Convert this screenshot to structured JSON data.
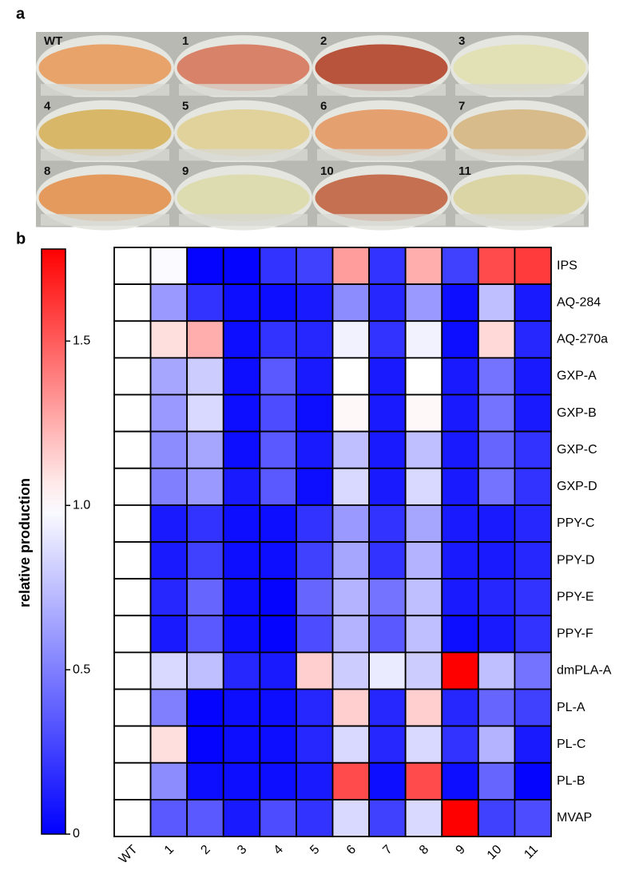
{
  "panel_a": {
    "label": "a",
    "flask_labels": [
      "WT",
      "1",
      "2",
      "3",
      "4",
      "5",
      "6",
      "7",
      "8",
      "9",
      "10",
      "11"
    ]
  },
  "chart_data": {
    "type": "heatmap",
    "panel_label": "b",
    "x": [
      "WT",
      "1",
      "2",
      "3",
      "4",
      "5",
      "6",
      "7",
      "8",
      "9",
      "10",
      "11"
    ],
    "y": [
      "IPS",
      "AQ-284",
      "AQ-270a",
      "GXP-A",
      "GXP-B",
      "GXP-C",
      "GXP-D",
      "PPY-C",
      "PPY-D",
      "PPY-E",
      "PPY-F",
      "dmPLA-A",
      "PL-A",
      "PL-C",
      "PL-B",
      "MVAP"
    ],
    "z": [
      [
        1,
        0.98,
        0.02,
        0.02,
        0.2,
        0.25,
        1.3,
        0.2,
        1.25,
        0.25,
        1.55,
        1.6
      ],
      [
        1,
        0.6,
        0.2,
        0.05,
        0.05,
        0.1,
        0.55,
        0.15,
        0.6,
        0.05,
        0.75,
        0.1
      ],
      [
        1,
        1.1,
        1.25,
        0.05,
        0.2,
        0.15,
        0.95,
        0.2,
        0.95,
        0.05,
        1.12,
        0.15
      ],
      [
        1,
        0.65,
        0.8,
        0.05,
        0.35,
        0.1,
        1.0,
        0.1,
        1.0,
        0.1,
        0.45,
        0.1
      ],
      [
        1,
        0.6,
        0.85,
        0.05,
        0.3,
        0.05,
        1.02,
        0.1,
        1.02,
        0.1,
        0.45,
        0.1
      ],
      [
        1,
        0.55,
        0.65,
        0.05,
        0.35,
        0.1,
        0.75,
        0.1,
        0.75,
        0.1,
        0.4,
        0.2
      ],
      [
        1,
        0.5,
        0.6,
        0.1,
        0.35,
        0.05,
        0.85,
        0.1,
        0.85,
        0.1,
        0.45,
        0.2
      ],
      [
        1,
        0.1,
        0.2,
        0.05,
        0.05,
        0.2,
        0.6,
        0.2,
        0.65,
        0.1,
        0.1,
        0.15
      ],
      [
        1,
        0.1,
        0.25,
        0.05,
        0.05,
        0.25,
        0.65,
        0.2,
        0.7,
        0.1,
        0.1,
        0.15
      ],
      [
        1,
        0.15,
        0.4,
        0.05,
        0.02,
        0.4,
        0.7,
        0.45,
        0.75,
        0.1,
        0.15,
        0.2
      ],
      [
        1,
        0.1,
        0.35,
        0.05,
        0.02,
        0.3,
        0.7,
        0.35,
        0.75,
        0.05,
        0.1,
        0.2
      ],
      [
        1,
        0.85,
        0.75,
        0.15,
        0.1,
        1.15,
        0.8,
        0.92,
        0.8,
        1.78,
        0.75,
        0.45
      ],
      [
        1,
        0.5,
        0.02,
        0.05,
        0.05,
        0.15,
        1.15,
        0.15,
        1.15,
        0.15,
        0.4,
        0.25
      ],
      [
        1,
        1.1,
        0.02,
        0.05,
        0.05,
        0.15,
        0.85,
        0.15,
        0.85,
        0.2,
        0.7,
        0.1
      ],
      [
        1,
        0.55,
        0.05,
        0.05,
        0.05,
        0.1,
        1.55,
        0.05,
        1.55,
        0.05,
        0.4,
        0.02
      ],
      [
        1,
        0.35,
        0.35,
        0.1,
        0.3,
        0.2,
        0.85,
        0.25,
        0.85,
        1.78,
        0.25,
        0.3
      ]
    ],
    "zlim": [
      0,
      1.78
    ],
    "zticks": [
      0,
      0.5,
      {
        "value": 1,
        "label": "1.0"
      },
      1.5
    ],
    "colorbar_label": "relative production",
    "colors": {
      "low": "#0000ff",
      "mid": "#ffffff",
      "high": "#ff0000",
      "mid_value": 1
    }
  }
}
